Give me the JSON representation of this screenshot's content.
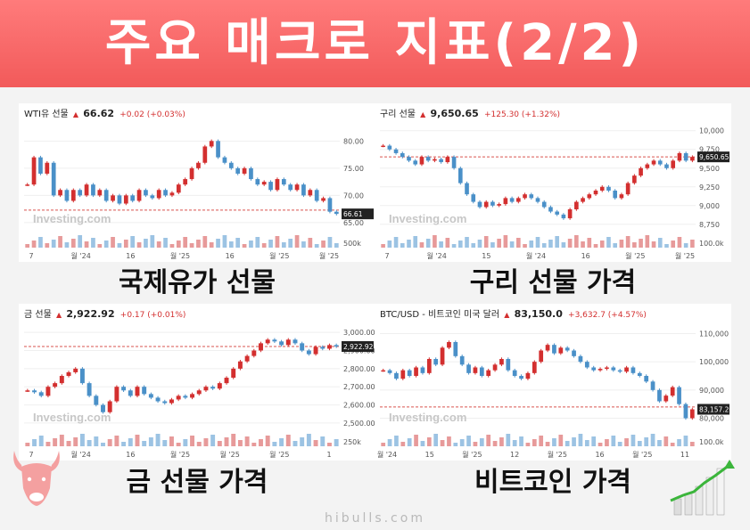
{
  "banner": {
    "title": "주요 매크로 지표(2/2)"
  },
  "watermark": "Investing.com",
  "footer": "hibulls.com",
  "colors": {
    "banner": "#f25a5a",
    "up": "#d32f2f",
    "down": "#4a90c8",
    "ref_line": "#d9534f"
  },
  "icons": [
    "bull-logo-icon",
    "growth-chart-icon",
    "up-triangle-icon"
  ],
  "chart_data": [
    {
      "id": "wti",
      "type": "line",
      "header": {
        "name": "WTI유 선물",
        "price": "66.62",
        "change": "+0.02 (+0.03%)"
      },
      "caption": "국제유가 선물",
      "last_label": "66.61",
      "ylim": [
        64,
        83
      ],
      "yticks": [
        "80.00",
        "75.00",
        "70.00",
        "65.00"
      ],
      "ytick_values": [
        80,
        75,
        70,
        65
      ],
      "volume_tick": "500k",
      "xticks": [
        "7",
        "월 '24",
        "16",
        "월 '25",
        "16",
        "월 '25",
        "월 '25"
      ],
      "ref": 67.3,
      "values": [
        72,
        77,
        74,
        76,
        70,
        71,
        69,
        71,
        70,
        72,
        70,
        71,
        69,
        70,
        68.5,
        70,
        69,
        71,
        70,
        69.5,
        71,
        70,
        70.5,
        72,
        73,
        75,
        76,
        79,
        80,
        77,
        76,
        75,
        74,
        75,
        73,
        72,
        72.5,
        71,
        73,
        72,
        71,
        72,
        70,
        71,
        69,
        69.5,
        67,
        66.6
      ]
    },
    {
      "id": "copper",
      "type": "line",
      "header": {
        "name": "구리 선물",
        "price": "9,650.65",
        "change": "+125.30 (+1.32%)"
      },
      "caption": "구리 선물 가격",
      "last_label": "9,650.65",
      "ylim": [
        8700,
        10080
      ],
      "yticks": [
        "10,000",
        "9,750",
        "9,500",
        "9,250",
        "9,000",
        "8,750"
      ],
      "ytick_values": [
        10000,
        9750,
        9500,
        9250,
        9000,
        8750
      ],
      "volume_tick": "100.0k",
      "xticks": [
        "7",
        "월 '24",
        "15",
        "월 '24",
        "16",
        "월 '25",
        "월 '25"
      ],
      "ref": 9650,
      "values": [
        9800,
        9750,
        9700,
        9650,
        9600,
        9550,
        9650,
        9600,
        9620,
        9580,
        9650,
        9500,
        9300,
        9150,
        9050,
        8980,
        9050,
        9000,
        9020,
        9100,
        9050,
        9100,
        9150,
        9100,
        9050,
        8980,
        8920,
        8880,
        8830,
        8950,
        9050,
        9100,
        9150,
        9200,
        9250,
        9200,
        9100,
        9150,
        9300,
        9400,
        9500,
        9550,
        9600,
        9550,
        9500,
        9600,
        9700,
        9600,
        9650
      ]
    },
    {
      "id": "gold",
      "type": "line",
      "header": {
        "name": "금 선물",
        "price": "2,922.92",
        "change": "+0.17 (+0.01%)"
      },
      "caption": "금 선물 가격",
      "last_label": "2,922.92",
      "ylim": [
        2480,
        3040
      ],
      "yticks": [
        "3,000.00",
        "2,900.00",
        "2,800.00",
        "2,700.00",
        "2,600.00",
        "2,500.00"
      ],
      "ytick_values": [
        3000,
        2900,
        2800,
        2700,
        2600,
        2500
      ],
      "volume_tick": "250k",
      "xticks": [
        "7",
        "월 '24",
        "16",
        "월 '25",
        "월 '25",
        "월 '25",
        "1"
      ],
      "ref": 2922,
      "values": [
        2680,
        2670,
        2650,
        2700,
        2720,
        2760,
        2780,
        2800,
        2720,
        2650,
        2600,
        2560,
        2620,
        2700,
        2680,
        2650,
        2700,
        2660,
        2640,
        2620,
        2610,
        2630,
        2650,
        2640,
        2660,
        2680,
        2700,
        2690,
        2720,
        2750,
        2800,
        2840,
        2870,
        2900,
        2940,
        2960,
        2950,
        2930,
        2960,
        2940,
        2900,
        2880,
        2920,
        2910,
        2930,
        2922
      ]
    },
    {
      "id": "btc",
      "type": "line",
      "header": {
        "name": "BTC/USD - 비트코인 미국 달러",
        "price": "83,150.0",
        "change": "+3,632.7 (+4.57%)"
      },
      "caption": "비트코인 가격",
      "last_label": "83,157.20",
      "ylim": [
        77000,
        113000
      ],
      "yticks": [
        "110,000",
        "100,000",
        "90,000",
        "80,000"
      ],
      "ytick_values": [
        110000,
        100000,
        90000,
        80000
      ],
      "volume_tick": "100.0k",
      "xticks": [
        "월 '24",
        "15",
        "월 '25",
        "12",
        "월 '25",
        "16",
        "월 '25",
        "11"
      ],
      "ref": 84000,
      "values": [
        97000,
        96000,
        94000,
        97000,
        95000,
        98000,
        96000,
        101000,
        99000,
        105000,
        107000,
        102000,
        99000,
        96000,
        98000,
        95000,
        97000,
        99000,
        101000,
        97000,
        95000,
        94000,
        96000,
        100000,
        104000,
        106000,
        103000,
        105000,
        104000,
        102000,
        100000,
        98000,
        97000,
        97500,
        98000,
        97000,
        96500,
        98000,
        96000,
        95000,
        93000,
        90000,
        86000,
        88000,
        91000,
        85000,
        80000,
        83157
      ]
    }
  ]
}
